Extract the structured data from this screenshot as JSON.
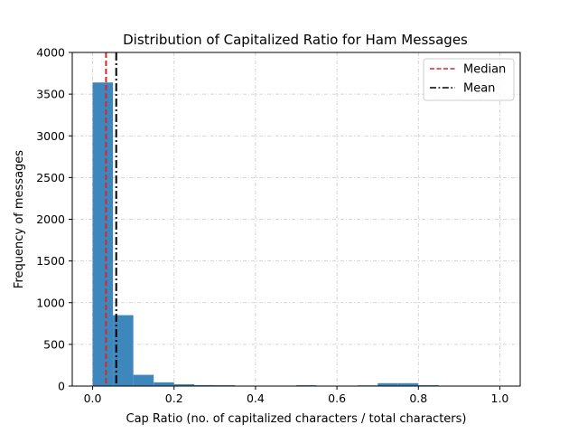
{
  "chart_data": {
    "type": "bar",
    "title": "Distribution of Capitalized Ratio for Ham Messages",
    "xlabel": "Cap Ratio (no. of capitalized characters / total characters)",
    "ylabel": "Frequency of messages",
    "xlim": [
      -0.05,
      1.05
    ],
    "ylim": [
      0,
      4000
    ],
    "xticks": [
      0.0,
      0.2,
      0.4,
      0.6,
      0.8,
      1.0
    ],
    "xtick_labels": [
      "0.0",
      "0.2",
      "0.4",
      "0.6",
      "0.8",
      "1.0"
    ],
    "yticks": [
      0,
      500,
      1000,
      1500,
      2000,
      2500,
      3000,
      3500,
      4000
    ],
    "ytick_labels": [
      "0",
      "500",
      "1000",
      "1500",
      "2000",
      "2500",
      "3000",
      "3500",
      "4000"
    ],
    "grid": true,
    "bar_color": "#3d87bd",
    "bin_edges": [
      0.0,
      0.05,
      0.1,
      0.15,
      0.2,
      0.25,
      0.3,
      0.35,
      0.4,
      0.45,
      0.5,
      0.55,
      0.6,
      0.65,
      0.7,
      0.75,
      0.8,
      0.85,
      0.9,
      0.95,
      1.0
    ],
    "counts": [
      3640,
      850,
      135,
      45,
      22,
      12,
      10,
      0,
      0,
      0,
      10,
      0,
      0,
      8,
      35,
      35,
      10,
      0,
      0,
      0
    ],
    "lines": [
      {
        "name": "Median",
        "x": 0.033,
        "color": "#d62728",
        "style": "dashed"
      },
      {
        "name": "Mean",
        "x": 0.058,
        "color": "#000000",
        "style": "dashdot"
      }
    ],
    "legend_position": "top-right"
  }
}
